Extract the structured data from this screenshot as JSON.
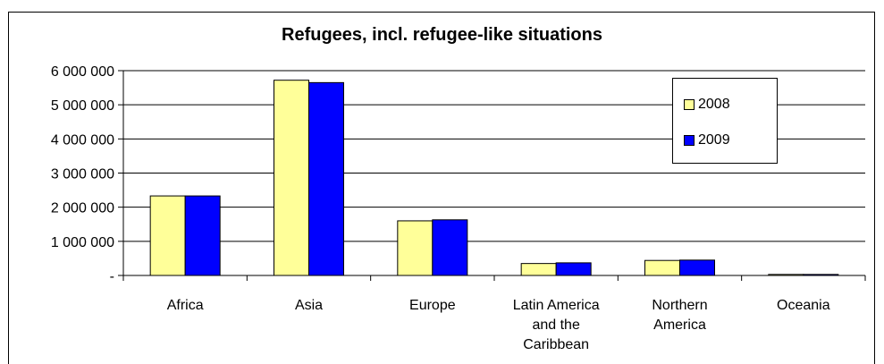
{
  "chart_data": {
    "type": "bar",
    "title": "Refugees, incl. refugee-like situations",
    "categories": [
      [
        "Africa"
      ],
      [
        "Asia"
      ],
      [
        "Europe"
      ],
      [
        "Latin America",
        "and the",
        "Caribbean"
      ],
      [
        "Northern",
        "America"
      ],
      [
        "Oceania"
      ]
    ],
    "series": [
      {
        "name": "2008",
        "color": "#ffff99",
        "values": [
          2330000,
          5720000,
          1600000,
          350000,
          440000,
          30000
        ]
      },
      {
        "name": "2009",
        "color": "#0000ff",
        "values": [
          2330000,
          5650000,
          1630000,
          370000,
          450000,
          30000
        ]
      }
    ],
    "yticks": [
      0,
      1000000,
      2000000,
      3000000,
      4000000,
      5000000,
      6000000
    ],
    "ytick_labels": [
      "-",
      "1 000 000",
      "2 000 000",
      "3 000 000",
      "4 000 000",
      "5 000 000",
      "6 000 000"
    ],
    "ylim": [
      0,
      6000000
    ],
    "grid": true,
    "legend_position": "top-right"
  }
}
